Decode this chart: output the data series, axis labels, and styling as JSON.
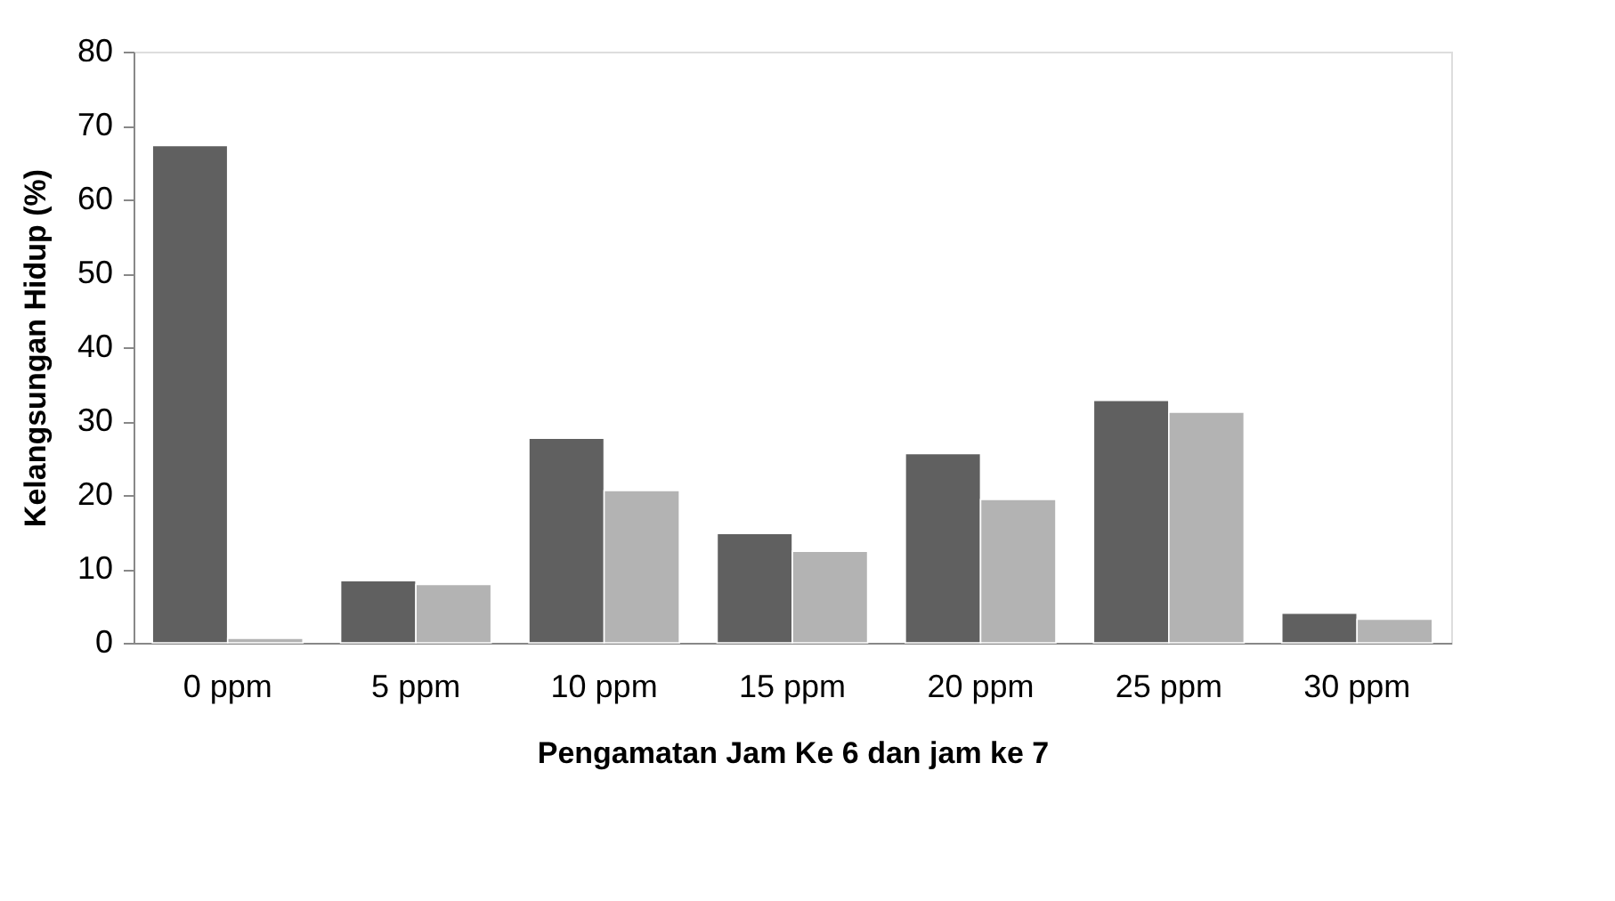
{
  "chart_data": {
    "type": "bar",
    "xlabel": "Pengamatan Jam Ke 6 dan jam ke 7",
    "ylabel": "Kelangsungan Hidup (%)",
    "categories": [
      "0 ppm",
      "5 ppm",
      "10 ppm",
      "15 ppm",
      "20 ppm",
      "25 ppm",
      "30 ppm"
    ],
    "series": [
      {
        "color": "#606060",
        "values": [
          67.3,
          8.4,
          27.7,
          14.8,
          25.6,
          32.8,
          4.0
        ]
      },
      {
        "color": "#b3b3b3",
        "values": [
          0.6,
          7.9,
          20.6,
          12.4,
          19.4,
          31.2,
          3.2
        ]
      }
    ],
    "ylim": [
      0,
      80
    ],
    "yticks": [
      0,
      10,
      20,
      30,
      40,
      50,
      60,
      70,
      80
    ],
    "grid": false,
    "legend": false
  }
}
